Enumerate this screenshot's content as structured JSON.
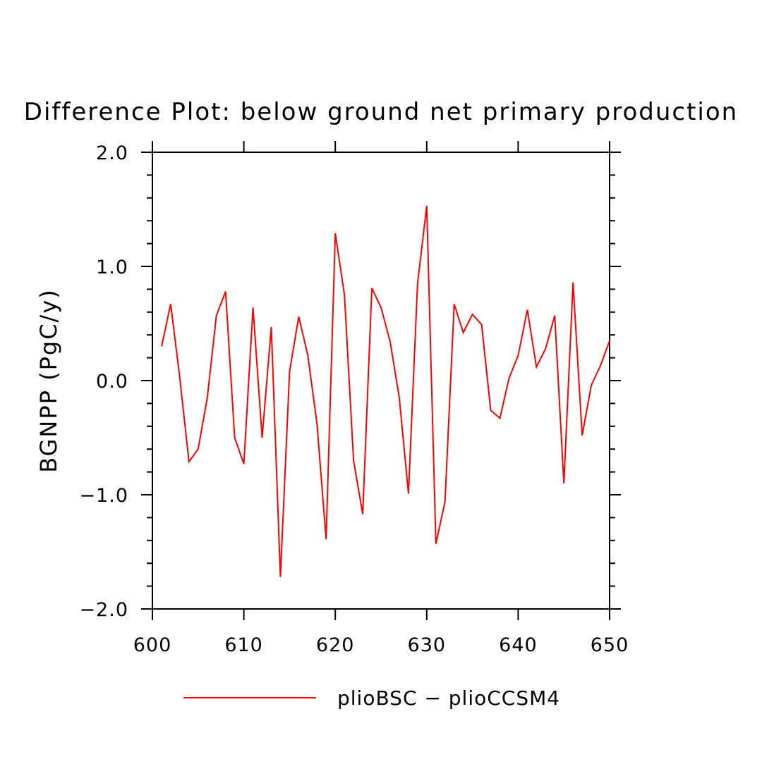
{
  "chart_data": {
    "type": "line",
    "title": "Difference Plot: below ground net primary production",
    "xlabel": "",
    "ylabel": "BGNPP  (PgC/y)",
    "xlim": [
      600,
      650
    ],
    "ylim": [
      -2.0,
      2.0
    ],
    "x_ticks": [
      "600",
      "610",
      "620",
      "630",
      "640",
      "650"
    ],
    "y_ticks": [
      "2.0",
      "1.0",
      "0.0",
      "−1.0",
      "−2.0"
    ],
    "y_tick_values": [
      2.0,
      1.0,
      0.0,
      -1.0,
      -2.0
    ],
    "x_tick_values": [
      600,
      610,
      620,
      630,
      640,
      650
    ],
    "grid": false,
    "legend_position": "bottom",
    "series": [
      {
        "name": "plioBSC − plioCCSM4",
        "color": "#ff0000",
        "x": [
          601,
          602,
          603,
          604,
          605,
          606,
          607,
          608,
          609,
          610,
          611,
          612,
          613,
          614,
          615,
          616,
          617,
          618,
          619,
          620,
          621,
          622,
          623,
          624,
          625,
          626,
          627,
          628,
          629,
          630,
          631,
          632,
          633,
          634,
          635,
          636,
          637,
          638,
          639,
          640,
          641,
          642,
          643,
          644,
          645,
          646,
          647,
          648,
          649,
          650
        ],
        "values": [
          0.3,
          0.67,
          0.02,
          -0.71,
          -0.6,
          -0.15,
          0.57,
          0.78,
          -0.5,
          -0.73,
          0.64,
          -0.5,
          0.47,
          -1.72,
          0.08,
          0.56,
          0.22,
          -0.38,
          -1.39,
          1.29,
          0.75,
          -0.7,
          -1.17,
          0.81,
          0.64,
          0.34,
          -0.15,
          -0.99,
          0.85,
          1.53,
          -1.43,
          -1.06,
          0.67,
          0.42,
          0.58,
          0.49,
          -0.26,
          -0.33,
          0.02,
          0.22,
          0.62,
          0.12,
          0.28,
          0.57,
          -0.9,
          0.86,
          -0.48,
          -0.04,
          0.13,
          0.35
        ]
      }
    ]
  }
}
